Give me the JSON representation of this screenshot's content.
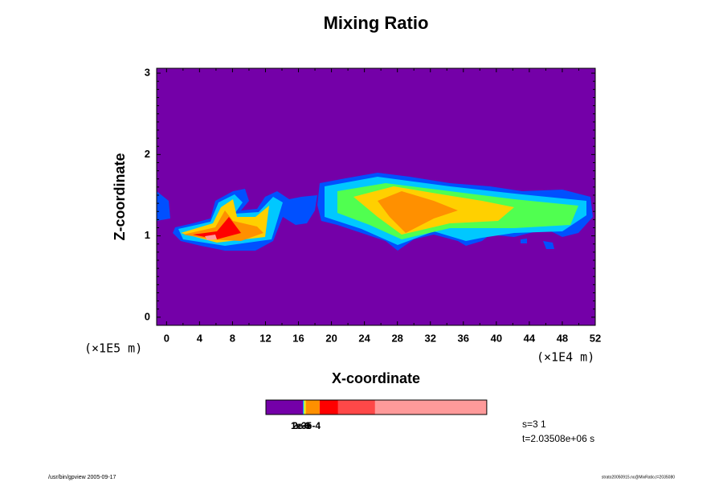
{
  "chart_data": {
    "type": "contour",
    "title": "Mixing Ratio",
    "x_label": "X-coordinate",
    "y_label": "Z-coordinate",
    "x_unit": "(×1E4 m)",
    "y_unit": "(×1E5 m)",
    "xlim": [
      -1.2,
      52
    ],
    "ylim": [
      -0.1,
      3.06
    ],
    "xticks": [
      0,
      4,
      8,
      12,
      16,
      20,
      24,
      28,
      32,
      36,
      40,
      44,
      48,
      52
    ],
    "yticks": [
      0,
      1,
      2,
      3
    ],
    "background_color": "#7400a8",
    "colorbar": {
      "colors": [
        "#7400a8",
        "#0050ff",
        "#00c8ff",
        "#50ff50",
        "#d8ff00",
        "#ffd000",
        "#ff9000",
        "#ff0000",
        "#ff4848",
        "#ff9a9a"
      ],
      "labels": [
        "1e-6",
        "2e-5",
        "3e-4"
      ]
    },
    "annotations": [
      "s=3 1",
      "t=2.03508e+06 s"
    ],
    "footer_left": "/usr/bin/gpview 2005-09-17",
    "footer_right": "strato20050915.nc@MixRatio,t=2035080"
  }
}
